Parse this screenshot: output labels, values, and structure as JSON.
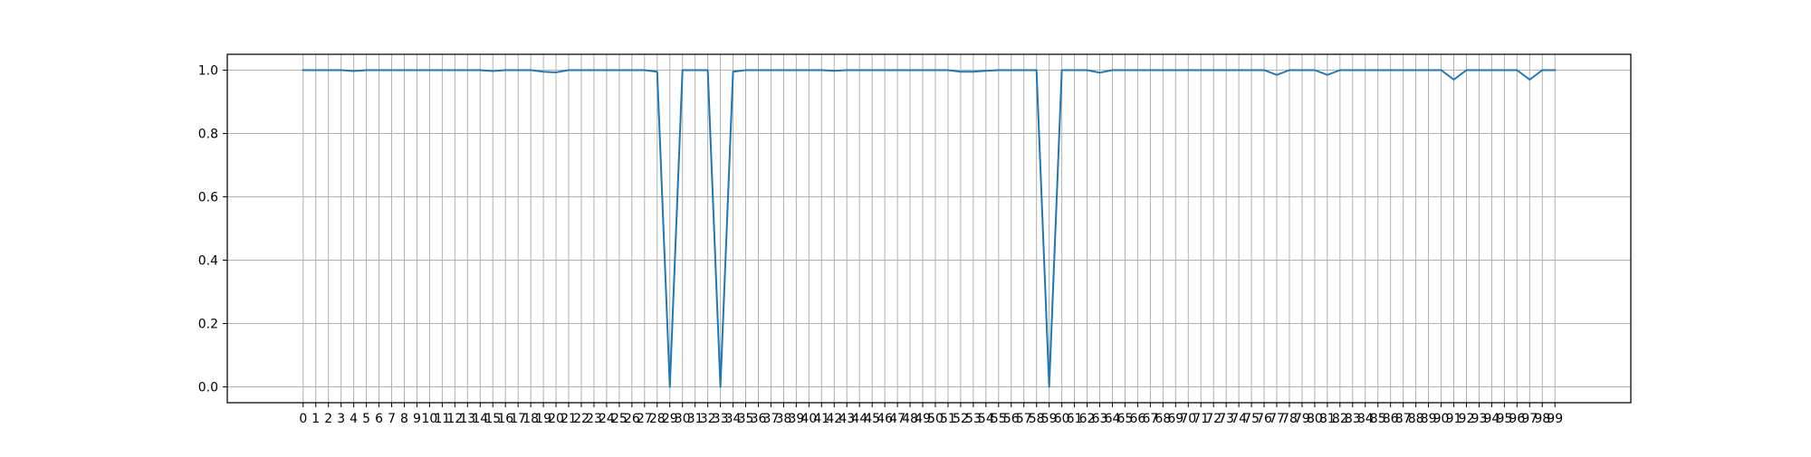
{
  "chart_data": {
    "type": "line",
    "title": "",
    "xlabel": "",
    "ylabel": "",
    "xlim": [
      -6,
      105
    ],
    "ylim": [
      -0.05,
      1.05
    ],
    "grid": true,
    "x_ticks": [
      0,
      1,
      2,
      3,
      4,
      5,
      6,
      7,
      8,
      9,
      10,
      11,
      12,
      13,
      14,
      15,
      16,
      17,
      18,
      19,
      20,
      21,
      22,
      23,
      24,
      25,
      26,
      27,
      28,
      29,
      30,
      31,
      32,
      33,
      34,
      35,
      36,
      37,
      38,
      39,
      40,
      41,
      42,
      43,
      44,
      45,
      46,
      47,
      48,
      49,
      50,
      51,
      52,
      53,
      54,
      55,
      56,
      57,
      58,
      59,
      60,
      61,
      62,
      63,
      64,
      65,
      66,
      67,
      68,
      69,
      70,
      71,
      72,
      73,
      74,
      75,
      76,
      77,
      78,
      79,
      80,
      81,
      82,
      83,
      84,
      85,
      86,
      87,
      88,
      89,
      90,
      91,
      92,
      93,
      94,
      95,
      96,
      97,
      98,
      99
    ],
    "y_ticks": [
      "0.0",
      "0.2",
      "0.4",
      "0.6",
      "0.8",
      "1.0"
    ],
    "series": [
      {
        "color": "#1f77b4",
        "x": [
          0,
          1,
          2,
          3,
          4,
          5,
          6,
          7,
          8,
          9,
          10,
          11,
          12,
          13,
          14,
          15,
          16,
          17,
          18,
          19,
          20,
          21,
          22,
          23,
          24,
          25,
          26,
          27,
          28,
          29,
          30,
          31,
          32,
          33,
          34,
          35,
          36,
          37,
          38,
          39,
          40,
          41,
          42,
          43,
          44,
          45,
          46,
          47,
          48,
          49,
          50,
          51,
          52,
          53,
          54,
          55,
          56,
          57,
          58,
          59,
          60,
          61,
          62,
          63,
          64,
          65,
          66,
          67,
          68,
          69,
          70,
          71,
          72,
          73,
          74,
          75,
          76,
          77,
          78,
          79,
          80,
          81,
          82,
          83,
          84,
          85,
          86,
          87,
          88,
          89,
          90,
          91,
          92,
          93,
          94,
          95,
          96,
          97,
          98,
          99
        ],
        "values": [
          1.0,
          1.0,
          1.0,
          1.0,
          0.997,
          1.0,
          1.0,
          1.0,
          1.0,
          1.0,
          1.0,
          1.0,
          1.0,
          1.0,
          1.0,
          0.997,
          1.0,
          1.0,
          1.0,
          0.995,
          0.993,
          1.0,
          1.0,
          1.0,
          1.0,
          1.0,
          1.0,
          1.0,
          0.995,
          0.0,
          1.0,
          1.0,
          1.0,
          0.0,
          0.995,
          1.0,
          1.0,
          1.0,
          1.0,
          1.0,
          1.0,
          1.0,
          0.998,
          1.0,
          1.0,
          1.0,
          1.0,
          1.0,
          1.0,
          1.0,
          1.0,
          1.0,
          0.995,
          0.995,
          0.998,
          1.0,
          1.0,
          1.0,
          1.0,
          0.0,
          1.0,
          1.0,
          1.0,
          0.992,
          1.0,
          1.0,
          1.0,
          1.0,
          1.0,
          1.0,
          1.0,
          1.0,
          1.0,
          1.0,
          1.0,
          1.0,
          1.0,
          0.985,
          1.0,
          1.0,
          1.0,
          0.985,
          1.0,
          1.0,
          1.0,
          1.0,
          1.0,
          1.0,
          1.0,
          1.0,
          1.0,
          0.97,
          1.0,
          1.0,
          1.0,
          1.0,
          1.0,
          0.97,
          1.0,
          1.0
        ]
      }
    ]
  }
}
